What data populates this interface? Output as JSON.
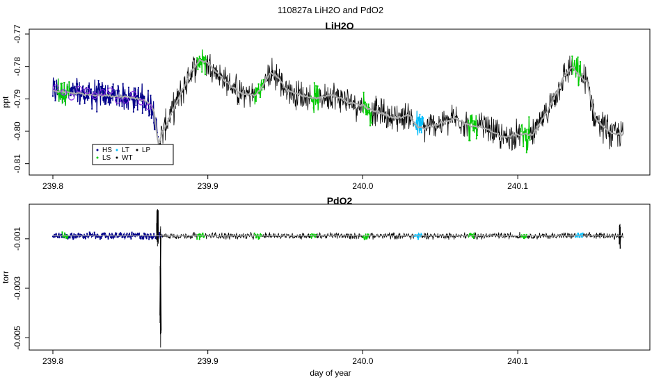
{
  "figure_title": "110827a   LiH2O and PdO2",
  "xlabel": "day of year",
  "chart_data": [
    {
      "type": "line",
      "title": "LiH2O",
      "xlabel": "",
      "ylabel": "ppt",
      "xlim": [
        239.8,
        240.17
      ],
      "ylim": [
        -0.8135,
        -0.7685
      ],
      "x_ticks": [
        239.8,
        239.9,
        240.0,
        240.1
      ],
      "x_tick_labels": [
        "239.8",
        "239.9",
        "240.0",
        "240.1"
      ],
      "y_ticks": [
        -0.77,
        -0.78,
        -0.79,
        -0.8,
        -0.81
      ],
      "y_tick_labels": [
        "-0.77",
        "-0.78",
        "-0.79",
        "-0.80",
        "-0.81"
      ],
      "legend": {
        "placement": "bottom-left",
        "entries": [
          {
            "label": "HS",
            "color": "#00008b"
          },
          {
            "label": "LT",
            "color": "#00bfff"
          },
          {
            "label": "LP",
            "color": "#000000"
          },
          {
            "label": "LS",
            "color": "#00cc00"
          },
          {
            "label": "WT",
            "color": "#000000"
          }
        ]
      },
      "smooth_series": {
        "name": "",
        "color": "#aaaaaa",
        "x": [
          239.8,
          239.81,
          239.82,
          239.83,
          239.84,
          239.85,
          239.86,
          239.865,
          239.868,
          239.872,
          239.88,
          239.89,
          239.895,
          239.9,
          239.91,
          239.92,
          239.93,
          239.935,
          239.94,
          239.945,
          239.95,
          239.96,
          239.97,
          239.98,
          239.99,
          240.0,
          240.005,
          240.01,
          240.02,
          240.03,
          240.035,
          240.04,
          240.05,
          240.06,
          240.07,
          240.08,
          240.09,
          240.1,
          240.11,
          240.12,
          240.13,
          240.135,
          240.14,
          240.145,
          240.15,
          240.16,
          240.168
        ],
        "y": [
          -0.7875,
          -0.788,
          -0.7885,
          -0.7888,
          -0.7892,
          -0.7894,
          -0.7905,
          -0.793,
          -0.804,
          -0.799,
          -0.791,
          -0.781,
          -0.778,
          -0.779,
          -0.784,
          -0.788,
          -0.789,
          -0.7865,
          -0.782,
          -0.783,
          -0.787,
          -0.789,
          -0.79,
          -0.7885,
          -0.791,
          -0.792,
          -0.7935,
          -0.794,
          -0.796,
          -0.795,
          -0.7985,
          -0.799,
          -0.7975,
          -0.796,
          -0.7985,
          -0.799,
          -0.802,
          -0.801,
          -0.801,
          -0.793,
          -0.783,
          -0.78,
          -0.783,
          -0.785,
          -0.796,
          -0.8005,
          -0.801
        ]
      },
      "raw_noise_amplitude": 0.0042,
      "segment_colors": [
        {
          "x_start": 239.8,
          "x_end": 239.868,
          "color": "#00008b"
        },
        {
          "x_start": 239.803,
          "x_end": 239.811,
          "color": "#00cc00"
        },
        {
          "x_start": 239.893,
          "x_end": 239.899,
          "color": "#00cc00"
        },
        {
          "x_start": 239.93,
          "x_end": 239.936,
          "color": "#00cc00"
        },
        {
          "x_start": 239.966,
          "x_end": 239.972,
          "color": "#00cc00"
        },
        {
          "x_start": 240.0,
          "x_end": 240.006,
          "color": "#00cc00"
        },
        {
          "x_start": 240.033,
          "x_end": 240.039,
          "color": "#00bfff"
        },
        {
          "x_start": 240.068,
          "x_end": 240.074,
          "color": "#00cc00"
        },
        {
          "x_start": 240.102,
          "x_end": 240.108,
          "color": "#00cc00"
        },
        {
          "x_start": 240.135,
          "x_end": 240.141,
          "color": "#00cc00"
        }
      ],
      "circle_markers": {
        "color": "#8a2be2",
        "x": [
          239.802,
          239.807,
          239.812,
          239.817,
          239.822,
          239.827,
          239.832,
          239.837,
          239.842,
          239.847,
          239.852,
          239.857,
          239.862
        ],
        "y": [
          -0.7865,
          -0.788,
          -0.7895,
          -0.787,
          -0.7875,
          -0.789,
          -0.788,
          -0.7875,
          -0.7905,
          -0.7905,
          -0.7885,
          -0.791,
          -0.7925
        ]
      }
    },
    {
      "type": "line",
      "title": "PdO2",
      "xlabel": "day of year",
      "ylabel": "torr",
      "xlim": [
        239.8,
        240.17
      ],
      "ylim": [
        -0.0055,
        0.0004
      ],
      "x_ticks": [
        239.8,
        239.9,
        240.0,
        240.1
      ],
      "x_tick_labels": [
        "239.8",
        "239.9",
        "240.0",
        "240.1"
      ],
      "y_ticks": [
        -0.001,
        -0.003,
        -0.005
      ],
      "y_tick_labels": [
        "-0.001",
        "-0.003",
        "-0.005"
      ],
      "baseline": -0.00088,
      "raw_noise_amplitude": 0.00012,
      "spikes": [
        {
          "x": 239.8675,
          "y_min": -0.0013,
          "y_max": 0.0002
        },
        {
          "x": 239.8695,
          "y_min": -0.0054,
          "y_max": -0.0005
        },
        {
          "x": 240.166,
          "y_min": -0.0014,
          "y_max": -0.0004
        }
      ],
      "segment_colors": [
        {
          "x_start": 239.8,
          "x_end": 239.866,
          "color": "#00008b"
        },
        {
          "x_start": 239.806,
          "x_end": 239.81,
          "color": "#00cc00"
        },
        {
          "x_start": 239.866,
          "x_end": 239.87,
          "color": "#00008b"
        },
        {
          "x_start": 239.893,
          "x_end": 239.898,
          "color": "#00cc00"
        },
        {
          "x_start": 239.93,
          "x_end": 239.935,
          "color": "#00cc00"
        },
        {
          "x_start": 239.966,
          "x_end": 239.97,
          "color": "#00cc00"
        },
        {
          "x_start": 240.0,
          "x_end": 240.004,
          "color": "#00cc00"
        },
        {
          "x_start": 240.033,
          "x_end": 240.038,
          "color": "#00bfff"
        },
        {
          "x_start": 240.068,
          "x_end": 240.072,
          "color": "#00cc00"
        },
        {
          "x_start": 240.102,
          "x_end": 240.106,
          "color": "#00cc00"
        },
        {
          "x_start": 240.137,
          "x_end": 240.142,
          "color": "#00bfff"
        }
      ]
    }
  ]
}
